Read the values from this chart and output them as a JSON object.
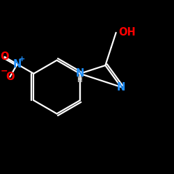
{
  "background_color": "#000000",
  "bond_color": "#ffffff",
  "N_color": "#1e90ff",
  "O_color": "#ff0000",
  "figsize": [
    2.5,
    2.5
  ],
  "dpi": 100,
  "xlim": [
    0,
    10
  ],
  "ylim": [
    0,
    10
  ]
}
